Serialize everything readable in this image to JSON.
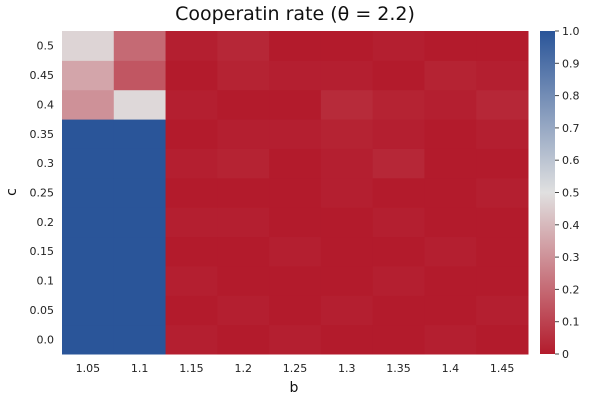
{
  "chart_data": {
    "type": "heatmap",
    "title": "Cooperatin rate (θ = 2.2)",
    "xlabel": "b",
    "ylabel": "c",
    "x": [
      1.05,
      1.1,
      1.15,
      1.2,
      1.25,
      1.3,
      1.35,
      1.4,
      1.45
    ],
    "y": [
      0.0,
      0.05,
      0.1,
      0.15,
      0.2,
      0.25,
      0.3,
      0.35,
      0.4,
      0.45,
      0.5
    ],
    "x_tick_labels": [
      "1.05",
      "1.1",
      "1.15",
      "1.2",
      "1.25",
      "1.3",
      "1.35",
      "1.4",
      "1.45"
    ],
    "y_tick_labels": [
      "0.0",
      "0.05",
      "0.1",
      "0.15",
      "0.2",
      "0.25",
      "0.3",
      "0.35",
      "0.4",
      "0.45",
      "0.5"
    ],
    "colorbar": {
      "range": [
        0,
        1
      ],
      "tick_labels": [
        "0",
        "0.1",
        "0.2",
        "0.3",
        "0.4",
        "0.5",
        "0.6",
        "0.7",
        "0.8",
        "0.9",
        "1.0"
      ],
      "colors": [
        "#b31b2c",
        "#e0e0e0",
        "#2a5599"
      ]
    },
    "values": [
      [
        1.0,
        1.0,
        0.01,
        0.0,
        0.01,
        0.0,
        0.0,
        0.01,
        0.0
      ],
      [
        1.0,
        1.0,
        0.0,
        0.01,
        0.0,
        0.01,
        0.0,
        0.0,
        0.01
      ],
      [
        1.0,
        1.0,
        0.01,
        0.0,
        0.0,
        0.0,
        0.01,
        0.0,
        0.0
      ],
      [
        1.0,
        1.0,
        0.0,
        0.0,
        0.01,
        0.0,
        0.0,
        0.01,
        0.0
      ],
      [
        1.0,
        1.0,
        0.01,
        0.01,
        0.0,
        0.0,
        0.01,
        0.0,
        0.0
      ],
      [
        1.0,
        1.0,
        0.0,
        0.0,
        0.0,
        0.01,
        0.0,
        0.0,
        0.01
      ],
      [
        1.0,
        1.0,
        0.01,
        0.02,
        0.0,
        0.01,
        0.03,
        0.0,
        0.0
      ],
      [
        1.0,
        1.0,
        0.0,
        0.01,
        0.01,
        0.02,
        0.01,
        0.0,
        0.01
      ],
      [
        0.3,
        0.48,
        0.01,
        0.0,
        0.0,
        0.04,
        0.02,
        0.01,
        0.03
      ],
      [
        0.35,
        0.15,
        0.0,
        0.02,
        0.01,
        0.01,
        0.0,
        0.02,
        0.01
      ],
      [
        0.47,
        0.2,
        0.01,
        0.03,
        0.0,
        0.0,
        0.01,
        0.0,
        0.0
      ]
    ]
  }
}
